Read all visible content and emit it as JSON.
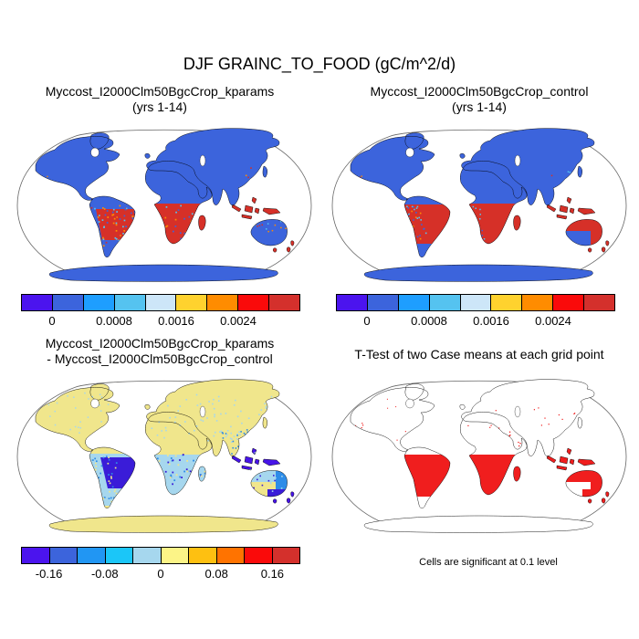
{
  "figure_title": "DJF GRAINC_TO_FOOD (gC/m^2/d)",
  "panels": [
    {
      "key": "kparams",
      "title_line1": "Myccost_I2000Clm50BgcCrop_kparams",
      "title_line2": "(yrs 1-14)",
      "colorbar": {
        "colors": [
          "#4B14EE",
          "#3C64DC",
          "#1E9EFF",
          "#55C3F0",
          "#CDE6F8",
          "#FFD22E",
          "#FF8C00",
          "#FA0A0A",
          "#D4302C"
        ],
        "labels": [
          "0",
          "0.0008",
          "0.0016",
          "0.0024"
        ]
      }
    },
    {
      "key": "control",
      "title_line1": "Myccost_I2000Clm50BgcCrop_control",
      "title_line2": "(yrs 1-14)",
      "colorbar": {
        "colors": [
          "#4B14EE",
          "#3C64DC",
          "#1E9EFF",
          "#55C3F0",
          "#CDE6F8",
          "#FFD22E",
          "#FF8C00",
          "#FA0A0A",
          "#D4302C"
        ],
        "labels": [
          "0",
          "0.0008",
          "0.0016",
          "0.0024"
        ]
      }
    },
    {
      "key": "diff",
      "title_line1": "Myccost_I2000Clm50BgcCrop_kparams",
      "title_line2": "- Myccost_I2000Clm50BgcCrop_control",
      "colorbar": {
        "colors": [
          "#4B14EE",
          "#3C64DC",
          "#2196F3",
          "#1BC6F8",
          "#A6D7EE",
          "#FCF487",
          "#FEC011",
          "#FF7300",
          "#FA0A0A",
          "#D4302C"
        ],
        "labels": [
          "-0.16",
          "-0.08",
          "0",
          "0.08",
          "0.16"
        ]
      }
    },
    {
      "key": "ttest",
      "title": "T-Test of two Case means at each grid point",
      "caption": "Cells are significant at 0.1 level"
    }
  ],
  "map_colors": {
    "ocean": "#FFFFFF",
    "coastline": "#000000",
    "map_border": "#666666",
    "land_low": "#3C64DC",
    "land_high": "#D63028",
    "speckle_orange": "#FF8C00",
    "speckle_cyan": "#55C3F0",
    "diff_base": "#F0E68C",
    "diff_neg_light": "#A6D7EE",
    "diff_neg_mid": "#2E8CE8",
    "diff_neg_dark": "#3A1CD8",
    "diff_neg_deep": "#4714E8",
    "ttest_land": "#FFFFFF",
    "ttest_sig": "#F01E1E"
  },
  "chart_data": [
    {
      "type": "heatmap",
      "subtype": "global-map-robinson",
      "title": "Myccost_I2000Clm50BgcCrop_kparams (yrs 1-14)",
      "units": "gC/m^2/d",
      "season": "DJF",
      "variable": "GRAINC_TO_FOOD",
      "colorbar_ticks": [
        0,
        0.0008,
        0.0016,
        0.0024
      ],
      "color_bin_width": 0.0004,
      "n_color_bins": 9,
      "legend_position": "below",
      "summary": "Most land near 0 (blue); high values (red, ~0.0024+) over South America south of equator, southern Africa, Madagascar and Indonesia/New Guinea; mottled orange/cyan speckles in crop regions; oceans masked white."
    },
    {
      "type": "heatmap",
      "subtype": "global-map-robinson",
      "title": "Myccost_I2000Clm50BgcCrop_control (yrs 1-14)",
      "units": "gC/m^2/d",
      "season": "DJF",
      "variable": "GRAINC_TO_FOOD",
      "colorbar_ticks": [
        0,
        0.0008,
        0.0016,
        0.0024
      ],
      "color_bin_width": 0.0004,
      "n_color_bins": 9,
      "legend_position": "below",
      "summary": "Same scale as kparams; solid high (red) values over Brazil/Paraguay/N-Argentina, southern Africa, Madagascar, Indonesia/New Guinea and northern/eastern Australia; rest of land near 0 (blue)."
    },
    {
      "type": "heatmap",
      "subtype": "global-map-robinson-difference",
      "title": "Myccost_I2000Clm50BgcCrop_kparams - Myccost_I2000Clm50BgcCrop_control",
      "units": "gC/m^2/d",
      "colorbar_ticks": [
        -0.16,
        -0.08,
        0,
        0.08,
        0.16
      ],
      "color_bin_width": 0.04,
      "n_color_bins": 10,
      "legend_position": "below",
      "summary": "Difference map: land mostly near zero (pale yellow); negative anomalies (light to deep blue, down to < -0.16) over southern South America (strongest over Brazil), southern Africa, Indonesia and eastern/southern Australia; scattered light-blue cells across Eurasia and North America."
    },
    {
      "type": "heatmap",
      "subtype": "global-map-significance-mask",
      "title": "T-Test of two Case means at each grid point",
      "caption": "Cells are significant at 0.1 level",
      "summary": "Outline map; significant cells (red) cover South America south of the equator, southern Africa, Madagascar, Indonesia/New Guinea, northern+eastern Australia, Tasmania and New Zealand, plus scattered dots in Mexico/Central America, east Africa and central Asia."
    }
  ]
}
